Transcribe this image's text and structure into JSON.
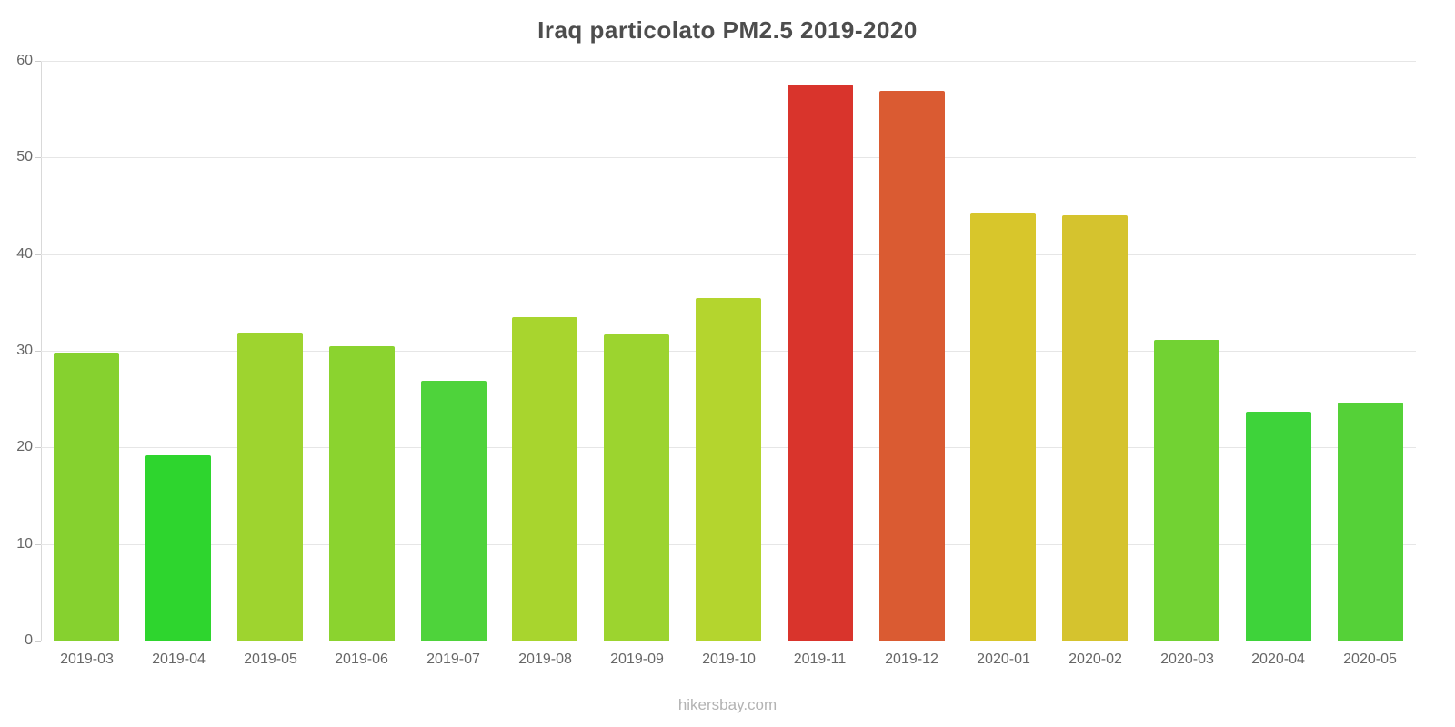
{
  "chart_data": {
    "type": "bar",
    "title": "Iraq particolato PM2.5 2019-2020",
    "categories": [
      "2019-03",
      "2019-04",
      "2019-05",
      "2019-06",
      "2019-07",
      "2019-08",
      "2019-09",
      "2019-10",
      "2019-11",
      "2019-12",
      "2020-01",
      "2020-02",
      "2020-03",
      "2020-04",
      "2020-05"
    ],
    "values": [
      29.8,
      19.2,
      31.9,
      30.5,
      26.9,
      33.5,
      31.7,
      35.5,
      57.6,
      56.9,
      44.3,
      44.0,
      31.1,
      23.7,
      24.6
    ],
    "colors": [
      "#86d12f",
      "#2ed52e",
      "#9ed42f",
      "#8bd32f",
      "#4ed33b",
      "#a8d52e",
      "#9cd42f",
      "#b4d52e",
      "#d9342c",
      "#da5b32",
      "#d8c62b",
      "#d5c32e",
      "#72d233",
      "#3ed33a",
      "#55d138"
    ],
    "xlabel": "",
    "ylabel": "",
    "ylim": [
      0,
      60
    ],
    "yticks": [
      0,
      10,
      20,
      30,
      40,
      50,
      60
    ],
    "grid": true,
    "legend_position": "none"
  },
  "footer": {
    "source": "hikersbay.com"
  }
}
